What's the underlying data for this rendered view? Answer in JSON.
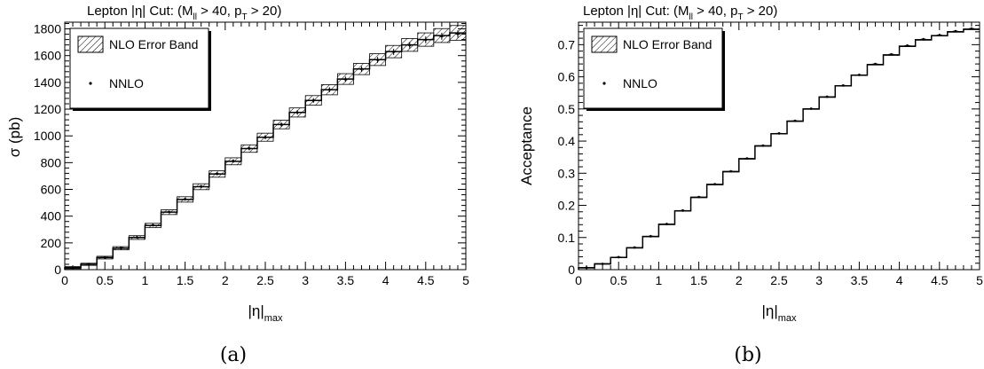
{
  "chart_data": [
    {
      "type": "line",
      "panel_label": "(a)",
      "title": {
        "base": "Lepton |η| Cut: (M",
        "sub1": "ll",
        "mid": " > 40, p",
        "sub2": "T",
        "end": " > 20)"
      },
      "ylabel": "σ (pb)",
      "xlabel": {
        "main": "|η|",
        "sub": "max"
      },
      "xlim": [
        0,
        5
      ],
      "ylim": [
        0,
        1850
      ],
      "x_ticks": [
        "0",
        "0.5",
        "1",
        "1.5",
        "2",
        "2.5",
        "3",
        "3.5",
        "4",
        "4.5",
        "5"
      ],
      "y_ticks": [
        "0",
        "200",
        "400",
        "600",
        "800",
        "1000",
        "1200",
        "1400",
        "1600",
        "1800"
      ],
      "legend": {
        "position": "top-left",
        "band_label": "NLO Error Band",
        "point_label": "NNLO"
      },
      "bin_width": 0.2,
      "series": [
        {
          "name": "NLO Error Band",
          "bin_lo": [
            0,
            0.2,
            0.4,
            0.6,
            0.8,
            1.0,
            1.2,
            1.4,
            1.6,
            1.8,
            2.0,
            2.2,
            2.4,
            2.6,
            2.8,
            3.0,
            3.2,
            3.4,
            3.6,
            3.8,
            4.0,
            4.2,
            4.4,
            4.6,
            4.8
          ],
          "values": [
            15,
            40,
            90,
            160,
            240,
            330,
            430,
            525,
            620,
            715,
            810,
            905,
            990,
            1085,
            1175,
            1265,
            1345,
            1425,
            1500,
            1570,
            1630,
            1680,
            1720,
            1750,
            1770
          ],
          "band": [
            8,
            8,
            10,
            12,
            14,
            16,
            18,
            20,
            22,
            24,
            26,
            28,
            30,
            32,
            34,
            36,
            38,
            40,
            42,
            44,
            46,
            48,
            50,
            52,
            55
          ]
        },
        {
          "name": "NNLO",
          "x": [
            0.1,
            0.3,
            0.5,
            0.7,
            0.9,
            1.1,
            1.3,
            1.5,
            1.7,
            1.9,
            2.1,
            2.3,
            2.5,
            2.7,
            2.9,
            3.1,
            3.3,
            3.5,
            3.7,
            3.9,
            4.1,
            4.3,
            4.5,
            4.7,
            4.9
          ],
          "values": [
            15,
            42,
            92,
            162,
            242,
            332,
            432,
            527,
            622,
            717,
            812,
            906,
            990,
            1085,
            1175,
            1265,
            1345,
            1423,
            1500,
            1568,
            1628,
            1678,
            1718,
            1745,
            1762
          ],
          "errors": [
            3,
            4,
            5,
            6,
            7,
            8,
            9,
            10,
            11,
            12,
            13,
            14,
            15,
            16,
            17,
            18,
            19,
            20,
            21,
            22,
            23,
            24,
            25,
            26,
            27
          ]
        }
      ]
    },
    {
      "type": "line",
      "panel_label": "(b)",
      "title": {
        "base": "Lepton |η| Cut: (M",
        "sub1": "ll",
        "mid": " > 40, p",
        "sub2": "T",
        "end": " > 20)"
      },
      "ylabel": "Acceptance",
      "xlabel": {
        "main": "|η|",
        "sub": "max"
      },
      "xlim": [
        0,
        5
      ],
      "ylim": [
        0,
        0.77
      ],
      "x_ticks": [
        "0",
        "0.5",
        "1",
        "1.5",
        "2",
        "2.5",
        "3",
        "3.5",
        "4",
        "4.5",
        "5"
      ],
      "y_ticks": [
        "0",
        "0.1",
        "0.2",
        "0.3",
        "0.4",
        "0.5",
        "0.6",
        "0.7"
      ],
      "legend": {
        "position": "top-left",
        "band_label": "NLO Error Band",
        "point_label": "NNLO"
      },
      "bin_width": 0.2,
      "series": [
        {
          "name": "NLO Error Band",
          "bin_lo": [
            0,
            0.2,
            0.4,
            0.6,
            0.8,
            1.0,
            1.2,
            1.4,
            1.6,
            1.8,
            2.0,
            2.2,
            2.4,
            2.6,
            2.8,
            3.0,
            3.2,
            3.4,
            3.6,
            3.8,
            4.0,
            4.2,
            4.4,
            4.6,
            4.8
          ],
          "values": [
            0.006,
            0.018,
            0.038,
            0.068,
            0.103,
            0.141,
            0.183,
            0.225,
            0.265,
            0.305,
            0.345,
            0.385,
            0.423,
            0.462,
            0.5,
            0.537,
            0.572,
            0.605,
            0.638,
            0.668,
            0.695,
            0.715,
            0.728,
            0.74,
            0.748
          ],
          "band": [
            0.001,
            0.001,
            0.001,
            0.001,
            0.001,
            0.001,
            0.001,
            0.001,
            0.001,
            0.001,
            0.001,
            0.001,
            0.001,
            0.001,
            0.001,
            0.001,
            0.001,
            0.001,
            0.001,
            0.001,
            0.001,
            0.001,
            0.001,
            0.001,
            0.001
          ]
        },
        {
          "name": "NNLO",
          "x": [
            0.1,
            0.3,
            0.5,
            0.7,
            0.9,
            1.1,
            1.3,
            1.5,
            1.7,
            1.9,
            2.1,
            2.3,
            2.5,
            2.7,
            2.9,
            3.1,
            3.3,
            3.5,
            3.7,
            3.9,
            4.1,
            4.3,
            4.5,
            4.7,
            4.9
          ],
          "values": [
            0.006,
            0.018,
            0.039,
            0.069,
            0.104,
            0.142,
            0.184,
            0.226,
            0.266,
            0.306,
            0.346,
            0.386,
            0.424,
            0.463,
            0.501,
            0.538,
            0.573,
            0.606,
            0.64,
            0.67,
            0.697,
            0.717,
            0.73,
            0.742,
            0.75
          ],
          "errors": [
            0.001,
            0.001,
            0.001,
            0.001,
            0.002,
            0.002,
            0.002,
            0.002,
            0.002,
            0.002,
            0.002,
            0.002,
            0.002,
            0.002,
            0.002,
            0.002,
            0.003,
            0.003,
            0.003,
            0.003,
            0.003,
            0.003,
            0.003,
            0.003,
            0.003
          ]
        }
      ]
    }
  ]
}
